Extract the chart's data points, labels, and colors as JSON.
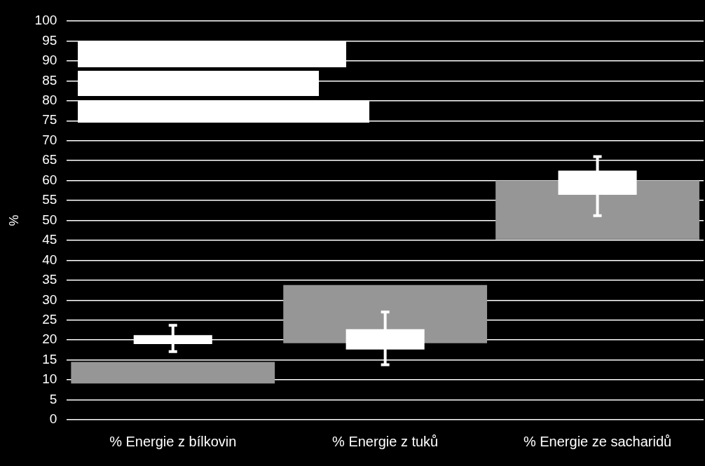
{
  "chart_data": {
    "type": "bar",
    "ylabel": "%",
    "categories": [
      "% Energie z bílkovin",
      "% Energie z tuků",
      "% Energie ze sacharidů"
    ],
    "series": [
      {
        "color": "#969696",
        "base": [
          9.1,
          19.2,
          45.2
        ],
        "values": [
          5.4,
          14.6,
          14.8
        ]
      },
      {
        "color": "#ffffff",
        "base": [
          19.0,
          17.6,
          56.4
        ],
        "values": [
          2.2,
          5.1,
          6.1
        ],
        "errors": [
          [
            17.1,
            23.7
          ],
          [
            13.8,
            27.0
          ],
          [
            51.2,
            66.0
          ]
        ]
      }
    ],
    "ylim": [
      0,
      100
    ],
    "yticks": [
      0,
      5,
      10,
      15,
      20,
      25,
      30,
      35,
      40,
      45,
      50,
      55,
      60,
      65,
      70,
      75,
      80,
      85,
      90,
      95,
      100
    ],
    "grid": "y",
    "legend": false
  }
}
